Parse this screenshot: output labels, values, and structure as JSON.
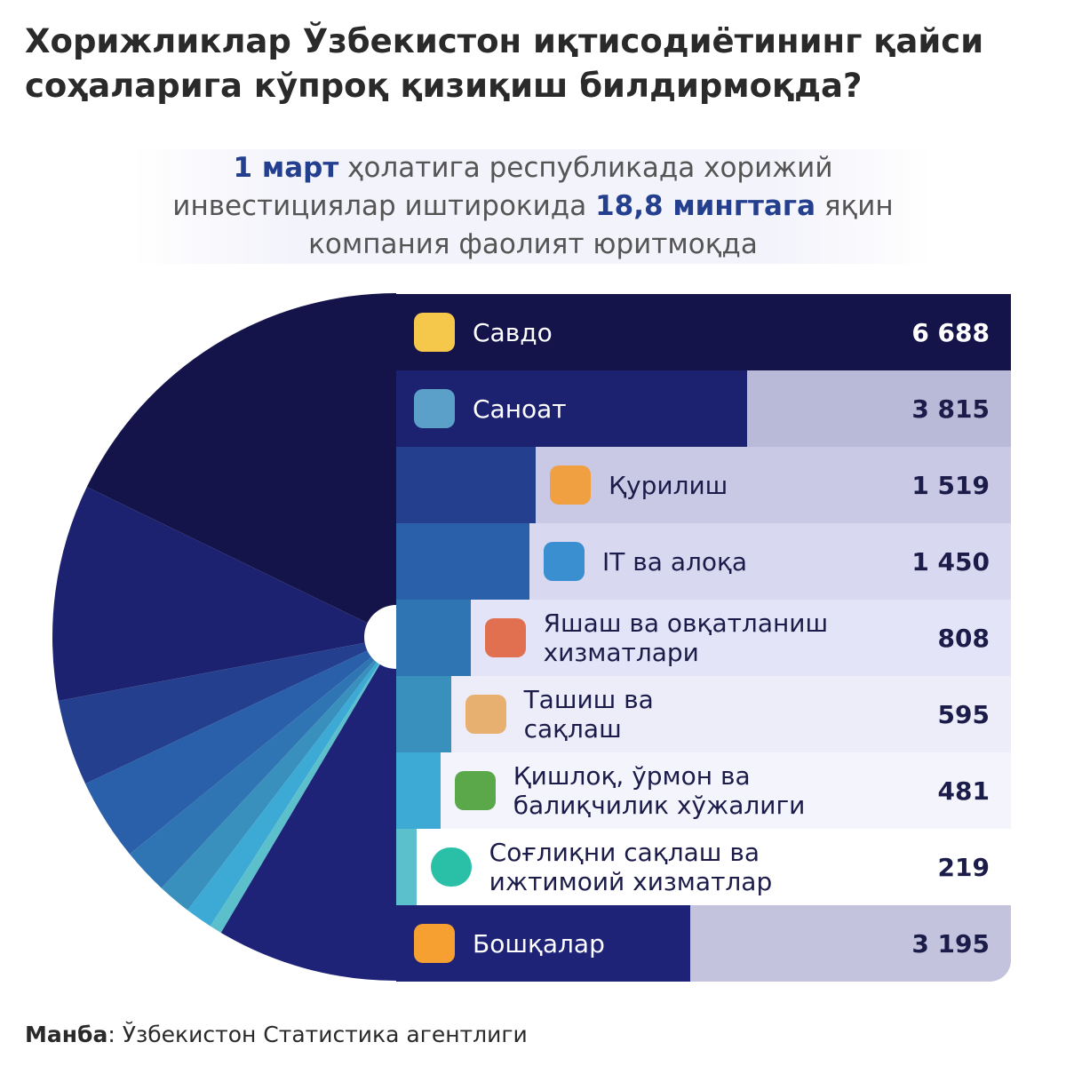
{
  "chart_data": {
    "type": "bar",
    "title": "Хорижликлар Ўзбекистон иқтисодиётининг қайси соҳаларига кўпроқ қизиқиш билдирмоқда?",
    "subtitle": [
      "1 март",
      " ҳолатига республикада хорижий инвестициялар иштирокида ",
      "18,8 мингтага",
      " яқин компания фаолият юритмоқда"
    ],
    "categories": [
      "Савдо",
      "Саноат",
      "Қурилиш",
      "IT ва алоқа",
      "Яшаш ва овқатланиш хизматлари",
      "Ташиш ва сақлаш",
      "Қишлоқ, ўрмон ва балиқчилик хўжалиги",
      "Соғлиқни сақлаш ва ижтимоий хизматлар",
      "Бошқалар"
    ],
    "values": [
      6688,
      3815,
      1519,
      1450,
      808,
      595,
      481,
      219,
      3195
    ],
    "value_labels": [
      "6 688",
      "3 815",
      "1 519",
      "1 450",
      "808",
      "595",
      "481",
      "219",
      "3 195"
    ],
    "colors": [
      "#14134a",
      "#1d2270",
      "#233f8e",
      "#2a5faa",
      "#2f74b3",
      "#3a90bd",
      "#3caad5",
      "#5cc0cc",
      "#1e2378"
    ],
    "track_colors": [
      "#14134a",
      "#b9b9d8",
      "#c9c9e5",
      "#d8d8f1",
      "#e4e4f8",
      "#ededfa",
      "#f4f4fd",
      "#ffffff",
      "#c3c3de"
    ],
    "source": {
      "label": "Манба",
      "text": ": Ўзбекистон Статистика агентлиги"
    }
  }
}
